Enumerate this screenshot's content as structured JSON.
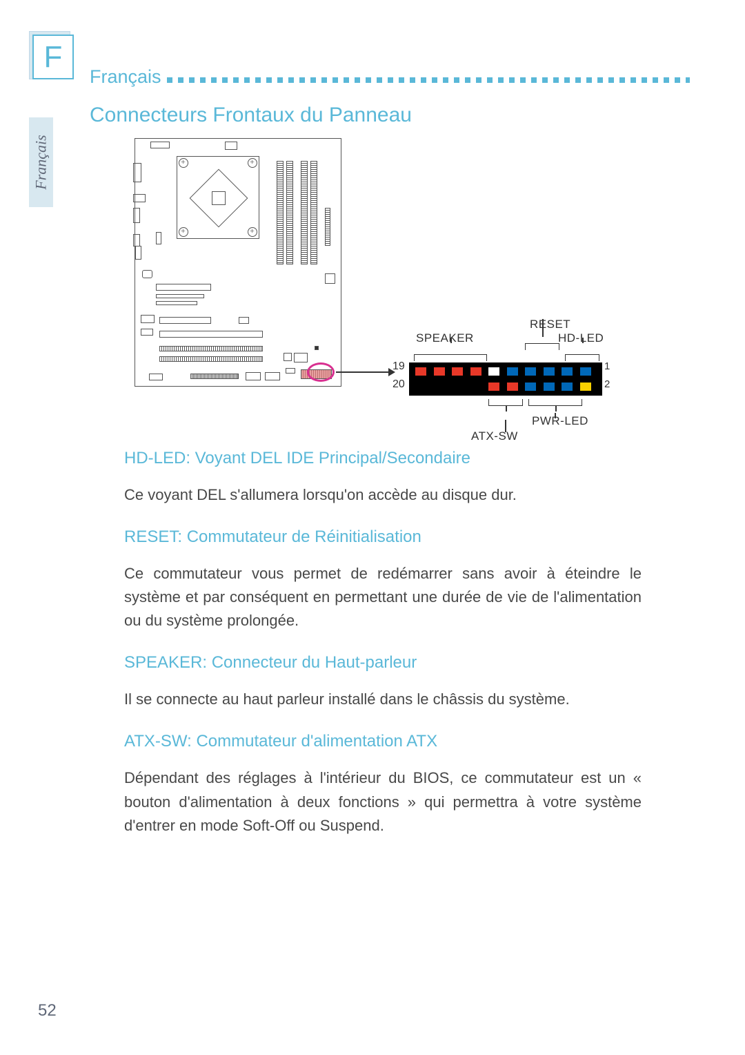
{
  "chapter_letter": "F",
  "header_label": "Français",
  "side_tab": "Français",
  "section_title": "Connecteurs Frontaux du Panneau",
  "pin_diagram": {
    "labels": {
      "reset": "RESET",
      "speaker": "SPEAKER",
      "hd_led": "HD-LED",
      "pwr_led": "PWR-LED",
      "atx_sw": "ATX-SW"
    },
    "pin_numbers": {
      "tl": "19",
      "bl": "20",
      "tr": "1",
      "br": "2"
    },
    "row1_colors": [
      "#e83828",
      "#e83828",
      "#e83828",
      "#e83828",
      "#ffffff",
      "#0068b8",
      "#0068b8",
      "#0068b8",
      "#0068b8",
      "#0068b8"
    ],
    "row2_colors": [
      "#ffffff",
      "#ffffff",
      "#ffffff",
      "#ffffff",
      "#e83828",
      "#e83828",
      "#0068b8",
      "#0068b8",
      "#0068b8",
      "#f8d000"
    ],
    "block_bg": "#000000",
    "callout_ring": "#d83090"
  },
  "sections": [
    {
      "heading": "HD-LED: Voyant DEL IDE Principal/Secondaire",
      "body": "Ce voyant DEL s'allumera lorsqu'on accède au disque dur."
    },
    {
      "heading": "RESET: Commutateur de Réinitialisation",
      "body": "Ce commutateur vous permet de redémarrer sans avoir à éteindre le système et par conséquent en permettant une durée de vie de l'alimentation ou du système prolongée."
    },
    {
      "heading": "SPEAKER: Connecteur du Haut-parleur",
      "body": "Il se connecte au haut parleur installé dans le châssis du système."
    },
    {
      "heading": "ATX-SW: Commutateur d'alimentation ATX",
      "body": "Dépendant des réglages à l'intérieur du BIOS, ce commutateur est un « bouton d'alimentation à deux fonctions » qui permettra à votre système d'entrer en mode Soft-Off ou Suspend."
    }
  ],
  "page_number": "52"
}
